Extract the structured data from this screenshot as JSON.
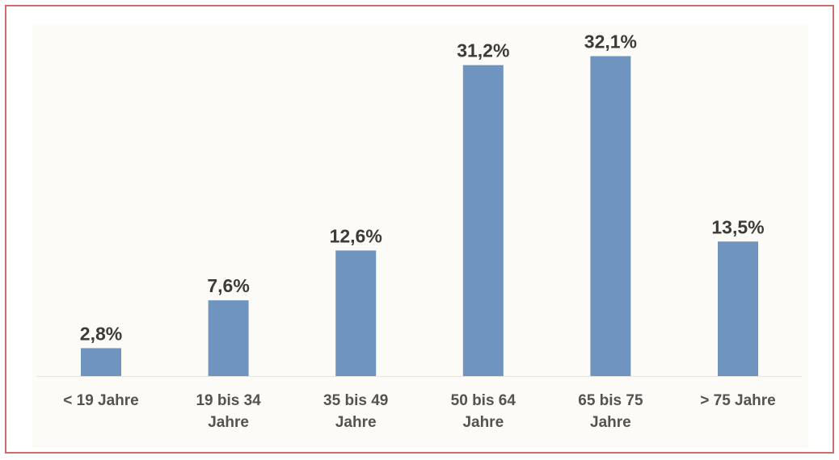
{
  "chart_data": {
    "type": "bar",
    "categories": [
      "< 19 Jahre",
      "19 bis 34 Jahre",
      "35 bis 49 Jahre",
      "50 bis 64 Jahre",
      "65 bis 75 Jahre",
      "> 75 Jahre"
    ],
    "values": [
      2.8,
      7.6,
      12.6,
      31.2,
      32.1,
      13.5
    ],
    "value_labels": [
      "2,8%",
      "7,6%",
      "12,6%",
      "31,2%",
      "32,1%",
      "13,5%"
    ],
    "color": "#7094c0"
  }
}
